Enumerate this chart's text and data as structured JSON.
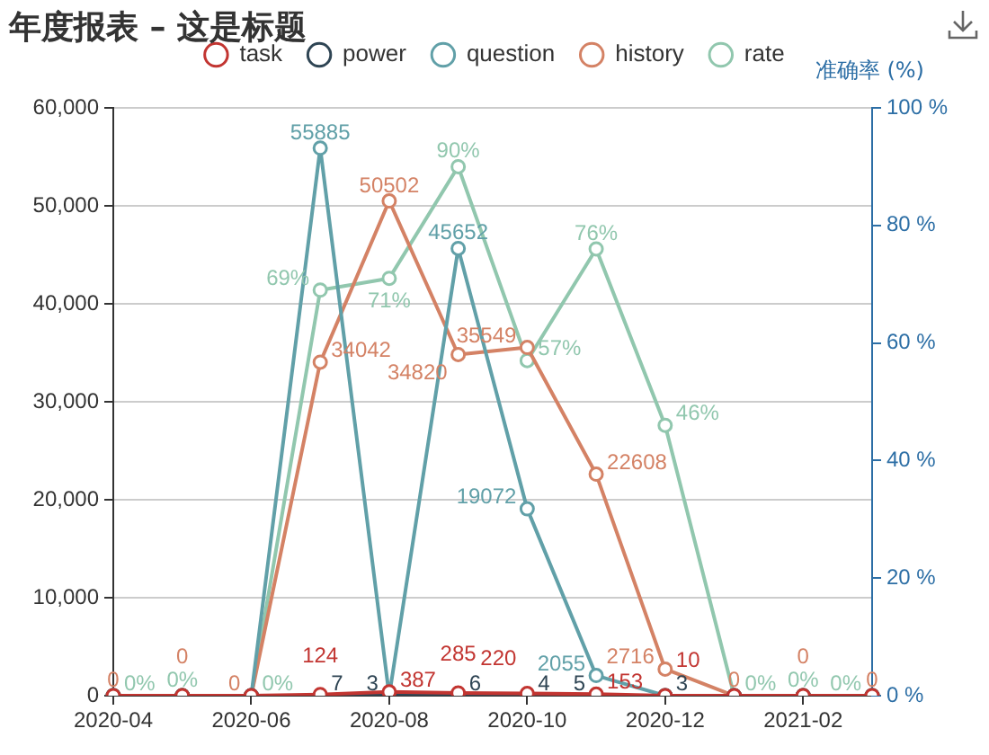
{
  "chart_data": {
    "type": "line",
    "title": "年度报表 – 这是标题",
    "y2label": "准确率 (%)",
    "categories": [
      "2020-04",
      null,
      "2020-06",
      null,
      "2020-08",
      null,
      "2020-10",
      null,
      "2020-12",
      null,
      "2021-02",
      null
    ],
    "series": [
      {
        "name": "task",
        "color": "#c23531",
        "values": [
          0,
          0,
          0,
          124,
          387,
          285,
          220,
          153,
          10,
          0,
          0,
          0
        ],
        "value_labels": [
          null,
          null,
          null,
          "124",
          "387",
          "285",
          "220",
          "153",
          "10",
          null,
          null,
          null
        ]
      },
      {
        "name": "power",
        "color": "#2f4554",
        "values": [
          0,
          0,
          0,
          7,
          3,
          6,
          4,
          5,
          3,
          0,
          0,
          0
        ],
        "value_labels": [
          null,
          null,
          null,
          "7",
          "3",
          "6",
          "4",
          "5",
          "3",
          null,
          null,
          null
        ]
      },
      {
        "name": "question",
        "color": "#61a0a8",
        "values": [
          0,
          0,
          0,
          55885,
          0,
          45652,
          19072,
          2055,
          0,
          0,
          0,
          0
        ],
        "value_labels": [
          null,
          null,
          null,
          "55885",
          null,
          "45652",
          "19072",
          "2055",
          null,
          null,
          null,
          null
        ]
      },
      {
        "name": "history",
        "color": "#d48265",
        "values": [
          0,
          0,
          0,
          34042,
          50502,
          34820,
          35549,
          22608,
          2716,
          0,
          0,
          0
        ],
        "value_labels": [
          "0",
          "0",
          "0",
          "34042",
          "50502",
          "34820",
          "35549",
          "22608",
          "2716",
          "0",
          "0",
          "0"
        ]
      },
      {
        "name": "rate",
        "color": "#91c7ae",
        "axis": "y2",
        "values": [
          0,
          0,
          0,
          69,
          71,
          90,
          57,
          76,
          46,
          0,
          0,
          0
        ],
        "value_labels": [
          "0%",
          "0%",
          "0%",
          "69%",
          "71%",
          "90%",
          "57%",
          "76%",
          "46%",
          "0%",
          "0%",
          "0%"
        ]
      }
    ],
    "ylim": [
      0,
      60000
    ],
    "yticks": [
      0,
      {
        "value": 10000,
        "label": "10,000"
      },
      {
        "value": 20000,
        "label": "20,000"
      },
      {
        "value": 30000,
        "label": "30,000"
      },
      {
        "value": 40000,
        "label": "40,000"
      },
      {
        "value": 50000,
        "label": "50,000"
      },
      {
        "value": 60000,
        "label": "60,000"
      }
    ],
    "y2lim": [
      0,
      100
    ],
    "y2ticks": [
      {
        "value": 0,
        "label": "0 %"
      },
      {
        "value": 20,
        "label": "20 %"
      },
      {
        "value": 40,
        "label": "40 %"
      },
      {
        "value": 60,
        "label": "60 %"
      },
      {
        "value": 80,
        "label": "80 %"
      },
      {
        "value": 100,
        "label": "100 %"
      }
    ],
    "grid": "y",
    "legend": "top",
    "marker": "circle",
    "line_style": "solid"
  }
}
